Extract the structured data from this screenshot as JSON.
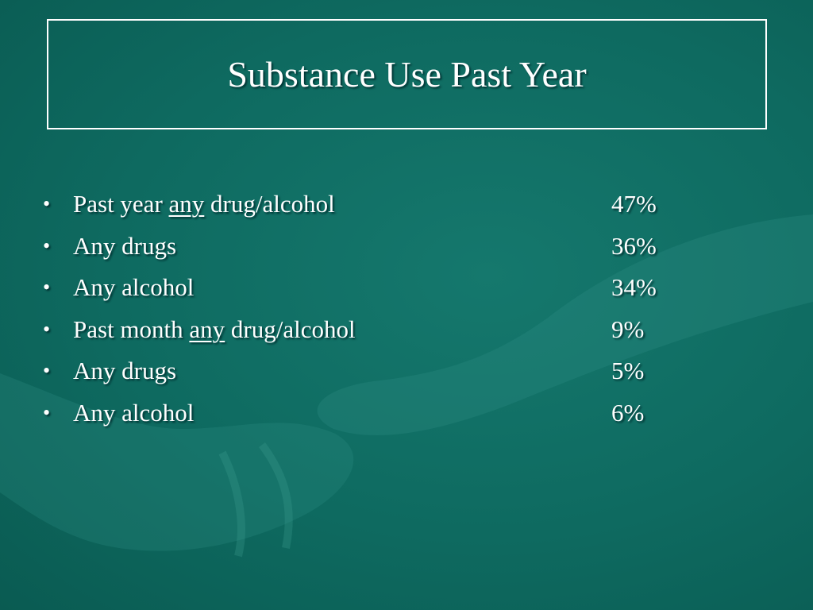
{
  "title": "Substance Use Past Year",
  "items": [
    {
      "parts": [
        "Past year",
        "any",
        "drug/alcohol"
      ],
      "underline": 1,
      "value": "47%"
    },
    {
      "parts": [
        "Any drugs"
      ],
      "value": "36%"
    },
    {
      "parts": [
        "Any alcohol"
      ],
      "value": "34%"
    },
    {
      "parts": [
        "Past month",
        "any",
        "drug/alcohol"
      ],
      "underline": 1,
      "value": "9%"
    },
    {
      "parts": [
        "Any drugs"
      ],
      "value": "5%"
    },
    {
      "parts": [
        "Any alcohol"
      ],
      "value": "6%"
    }
  ]
}
